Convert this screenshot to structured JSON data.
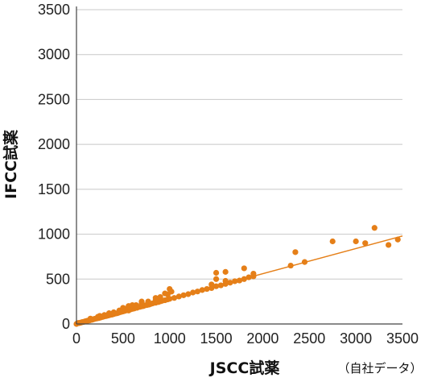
{
  "chart_data": {
    "type": "scatter",
    "title": "",
    "xlabel": "JSCC試薬",
    "ylabel": "IFCC試薬",
    "note": "（自社データ）",
    "xlim": [
      0,
      3500
    ],
    "ylim": [
      0,
      3500
    ],
    "xticks": [
      "0",
      "500",
      "1000",
      "1500",
      "2000",
      "2500",
      "3000",
      "3500"
    ],
    "yticks": [
      "0",
      "500",
      "1000",
      "1500",
      "2000",
      "2500",
      "3000",
      "3500"
    ],
    "grid": "horizontal",
    "colors": {
      "points": "#e57f18",
      "trendline": "#e57f18",
      "grid": "#c8c8c8",
      "axis": "#444444"
    },
    "trendline": {
      "x": [
        0,
        3500
      ],
      "y": [
        0,
        980
      ]
    },
    "series": [
      {
        "points": [
          [
            0,
            0
          ],
          [
            10,
            8
          ],
          [
            20,
            12
          ],
          [
            30,
            10
          ],
          [
            40,
            14
          ],
          [
            50,
            16
          ],
          [
            60,
            20
          ],
          [
            70,
            22
          ],
          [
            80,
            24
          ],
          [
            90,
            28
          ],
          [
            100,
            30
          ],
          [
            110,
            34
          ],
          [
            120,
            36
          ],
          [
            130,
            38
          ],
          [
            140,
            40
          ],
          [
            150,
            44
          ],
          [
            160,
            46
          ],
          [
            170,
            48
          ],
          [
            180,
            52
          ],
          [
            190,
            55
          ],
          [
            200,
            58
          ],
          [
            220,
            62
          ],
          [
            240,
            66
          ],
          [
            260,
            72
          ],
          [
            280,
            78
          ],
          [
            300,
            84
          ],
          [
            320,
            88
          ],
          [
            340,
            94
          ],
          [
            360,
            100
          ],
          [
            380,
            104
          ],
          [
            400,
            110
          ],
          [
            420,
            116
          ],
          [
            440,
            120
          ],
          [
            460,
            128
          ],
          [
            480,
            134
          ],
          [
            500,
            140
          ],
          [
            520,
            146
          ],
          [
            540,
            152
          ],
          [
            560,
            150
          ],
          [
            580,
            162
          ],
          [
            600,
            168
          ],
          [
            620,
            172
          ],
          [
            650,
            180
          ],
          [
            680,
            190
          ],
          [
            700,
            196
          ],
          [
            720,
            200
          ],
          [
            740,
            208
          ],
          [
            760,
            212
          ],
          [
            780,
            216
          ],
          [
            800,
            224
          ],
          [
            820,
            230
          ],
          [
            850,
            236
          ],
          [
            880,
            244
          ],
          [
            900,
            252
          ],
          [
            920,
            258
          ],
          [
            950,
            264
          ],
          [
            980,
            274
          ],
          [
            1000,
            280
          ],
          [
            1050,
            290
          ],
          [
            1100,
            306
          ],
          [
            1150,
            320
          ],
          [
            1200,
            332
          ],
          [
            1250,
            350
          ],
          [
            1300,
            362
          ],
          [
            1350,
            378
          ],
          [
            1400,
            390
          ],
          [
            1450,
            400
          ],
          [
            1500,
            420
          ],
          [
            1550,
            430
          ],
          [
            1600,
            446
          ],
          [
            1650,
            460
          ],
          [
            1700,
            476
          ],
          [
            1750,
            484
          ],
          [
            1800,
            500
          ],
          [
            1850,
            520
          ],
          [
            1900,
            530
          ],
          [
            150,
            60
          ],
          [
            230,
            80
          ],
          [
            300,
            100
          ],
          [
            400,
            130
          ],
          [
            460,
            150
          ],
          [
            520,
            170
          ],
          [
            570,
            190
          ],
          [
            640,
            210
          ],
          [
            700,
            230
          ],
          [
            770,
            250
          ],
          [
            850,
            270
          ],
          [
            900,
            300
          ],
          [
            980,
            330
          ],
          [
            1020,
            360
          ],
          [
            950,
            340
          ],
          [
            1000,
            390
          ],
          [
            850,
            290
          ],
          [
            700,
            250
          ],
          [
            600,
            210
          ],
          [
            560,
            200
          ],
          [
            500,
            180
          ],
          [
            350,
            120
          ],
          [
            250,
            90
          ],
          [
            1500,
            570
          ],
          [
            1600,
            580
          ],
          [
            1500,
            500
          ],
          [
            1600,
            480
          ],
          [
            1800,
            620
          ],
          [
            1900,
            560
          ],
          [
            1450,
            440
          ],
          [
            2300,
            650
          ],
          [
            2350,
            800
          ],
          [
            2450,
            690
          ],
          [
            2750,
            920
          ],
          [
            3000,
            920
          ],
          [
            3100,
            900
          ],
          [
            3200,
            1070
          ],
          [
            3350,
            880
          ],
          [
            3450,
            940
          ]
        ]
      }
    ]
  }
}
